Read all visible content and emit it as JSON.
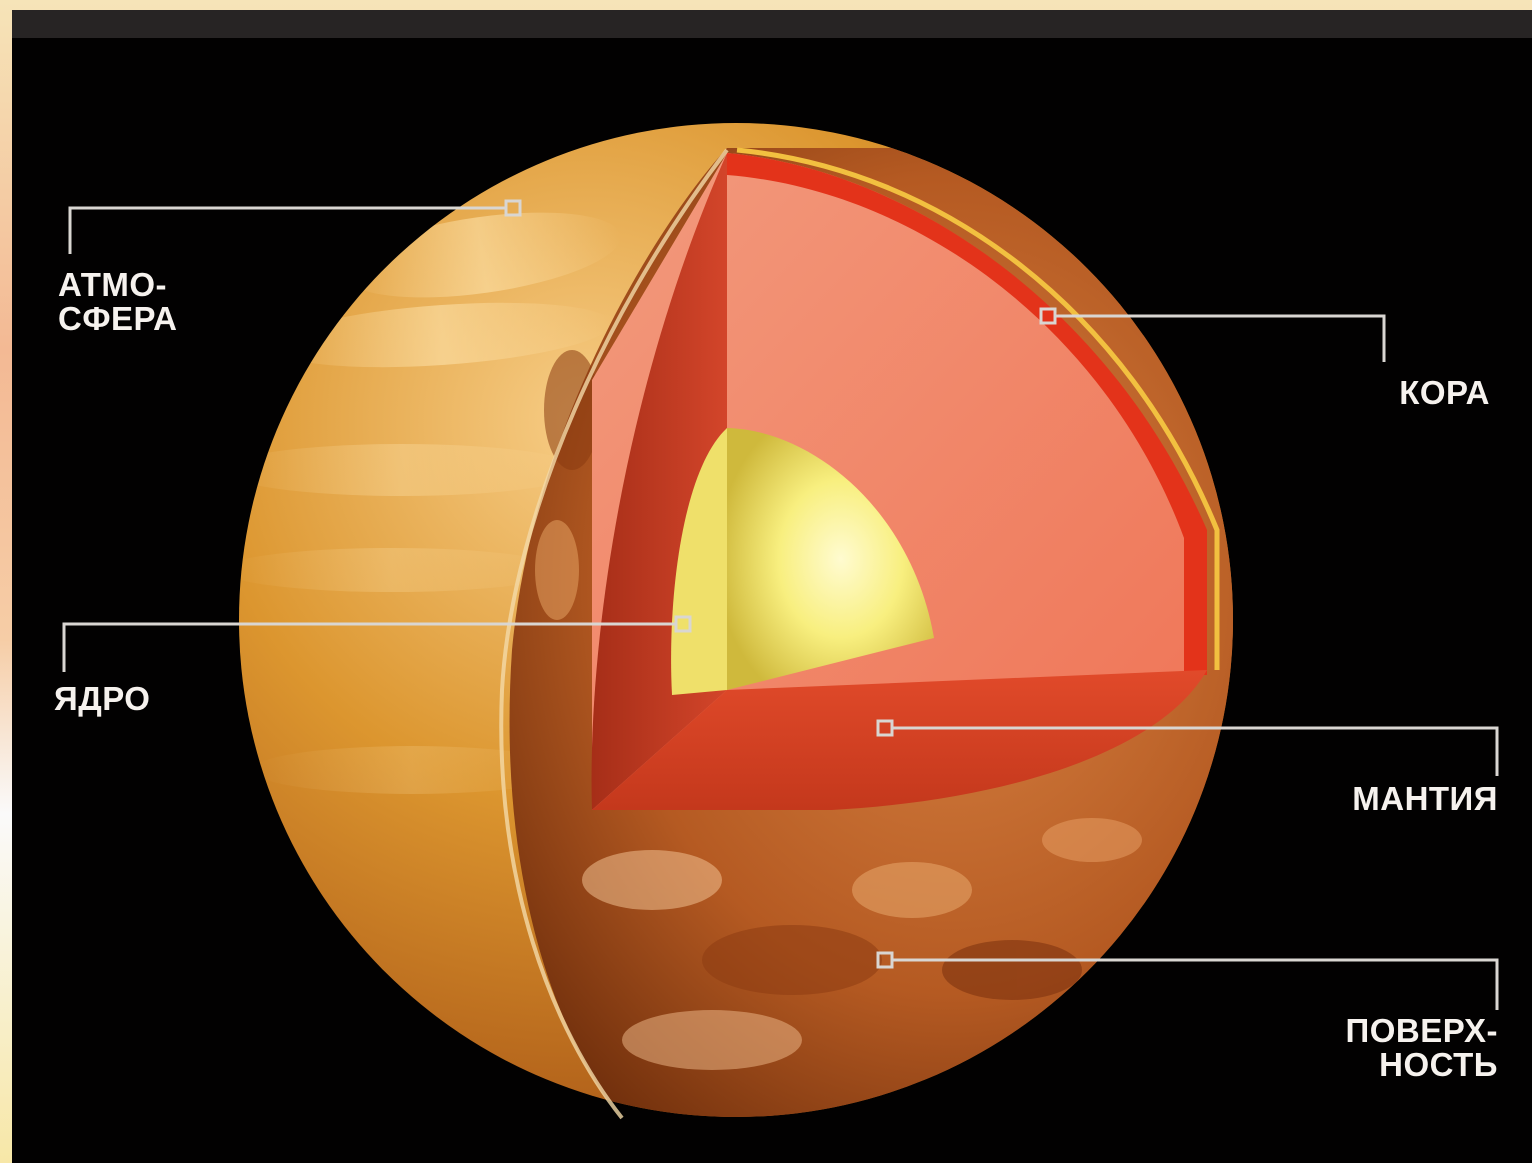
{
  "header": {
    "text": ""
  },
  "colors": {
    "panel_background": "#020101",
    "atmosphere": "#d98d2a",
    "crust": "#e43a1f",
    "mantle": "#f07a5c",
    "core": "#f6ef7a",
    "surface": "#b85a22",
    "leader_lines": "#d9d6d2",
    "label_text": "#f6f2ee"
  },
  "labels": {
    "atmosphere": "АТМО-\nСФЕРА",
    "crust": "КОРА",
    "core": "ЯДРО",
    "mantle": "МАНТИЯ",
    "surface": "ПОВЕРХ-\nНОСТЬ"
  }
}
